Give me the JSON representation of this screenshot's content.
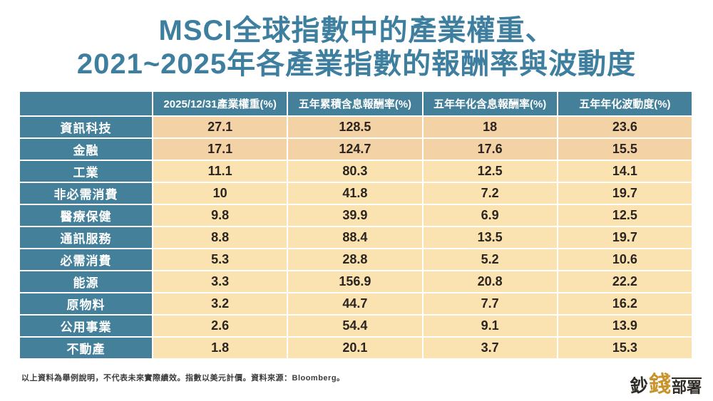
{
  "title": {
    "line1": "MSCI全球指數中的產業權重、",
    "line2": "2021~2025年各產業指數的報酬率與波動度"
  },
  "chart_data": {
    "type": "table",
    "title": "MSCI全球指數中的產業權重、2021~2025年各產業指數的報酬率與波動度",
    "columns": [
      "",
      "2025/12/31產業權重(%)",
      "五年累積含息報酬率(%)",
      "五年年化含息報酬率(%)",
      "五年年化波動度(%)"
    ],
    "rows": [
      {
        "label": "資訊科技",
        "values": [
          "27.1",
          "128.5",
          "18",
          "23.6"
        ],
        "highlighted": true
      },
      {
        "label": "金融",
        "values": [
          "17.1",
          "124.7",
          "17.6",
          "15.5"
        ],
        "highlighted": true
      },
      {
        "label": "工業",
        "values": [
          "11.1",
          "80.3",
          "12.5",
          "14.1"
        ],
        "highlighted": false
      },
      {
        "label": "非必需消費",
        "values": [
          "10",
          "41.8",
          "7.2",
          "19.7"
        ],
        "highlighted": false
      },
      {
        "label": "醫療保健",
        "values": [
          "9.8",
          "39.9",
          "6.9",
          "12.5"
        ],
        "highlighted": false
      },
      {
        "label": "通訊服務",
        "values": [
          "8.8",
          "88.4",
          "13.5",
          "19.7"
        ],
        "highlighted": false
      },
      {
        "label": "必需消費",
        "values": [
          "5.3",
          "28.8",
          "5.2",
          "10.6"
        ],
        "highlighted": false
      },
      {
        "label": "能源",
        "values": [
          "3.3",
          "156.9",
          "20.8",
          "22.2"
        ],
        "highlighted": false
      },
      {
        "label": "原物料",
        "values": [
          "3.2",
          "44.7",
          "7.7",
          "16.2"
        ],
        "highlighted": false
      },
      {
        "label": "公用事業",
        "values": [
          "2.6",
          "54.4",
          "9.1",
          "13.9"
        ],
        "highlighted": false
      },
      {
        "label": "不動產",
        "values": [
          "1.8",
          "20.1",
          "3.7",
          "15.3"
        ],
        "highlighted": false
      }
    ]
  },
  "footer": {
    "disclaimer": "以上資料為舉例說明，不代表未來實際績效。指數以美元計價。資料來源：Bloomberg。"
  },
  "logo": {
    "part1": "鈔",
    "part2": "錢",
    "part3": "部署"
  },
  "colors": {
    "title_teal": "#3E7E9E",
    "cell_teal": "#44809A",
    "row_highlight": "#F3D2A5",
    "row_normal": "#FAE3B0",
    "logo_gold": "#C9932C"
  }
}
